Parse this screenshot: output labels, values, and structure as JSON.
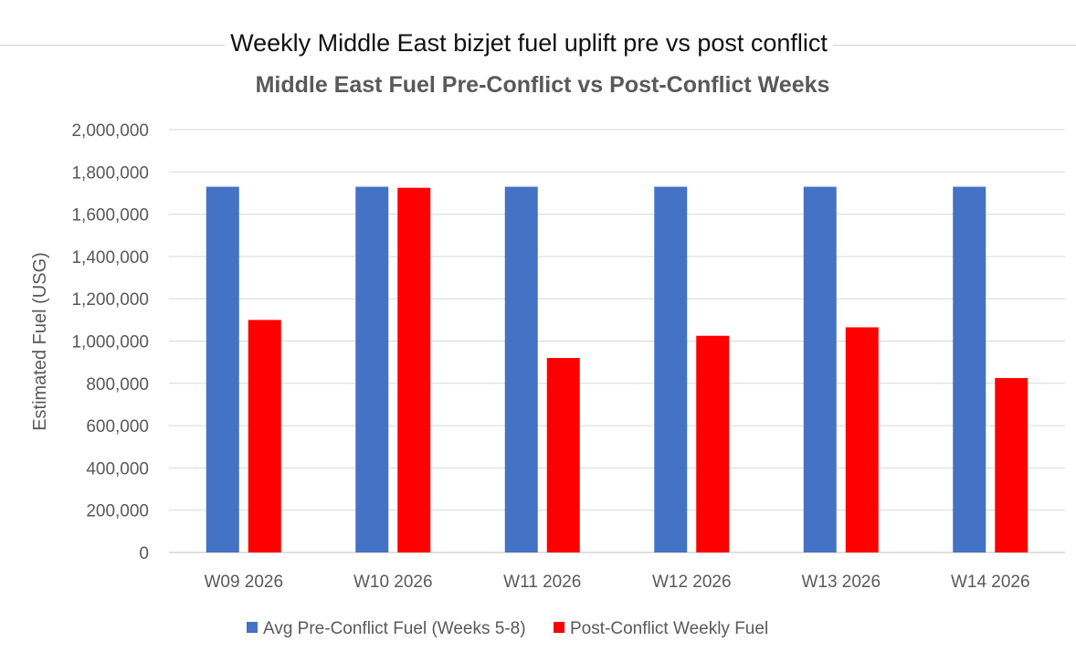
{
  "page": {
    "heading": "Weekly Middle East bizjet fuel uplift pre vs post conflict"
  },
  "chart_data": {
    "type": "bar",
    "title": "Middle East Fuel Pre-Conflict vs Post-Conflict Weeks",
    "xlabel": "",
    "ylabel": "Estimated Fuel (USG)",
    "ylim": [
      0,
      2000000
    ],
    "yticks": [
      0,
      200000,
      400000,
      600000,
      800000,
      1000000,
      1200000,
      1400000,
      1600000,
      1800000,
      2000000
    ],
    "ytick_labels": [
      "0",
      "200,000",
      "400,000",
      "600,000",
      "800,000",
      "1,000,000",
      "1,200,000",
      "1,400,000",
      "1,600,000",
      "1,800,000",
      "2,000,000"
    ],
    "grid": true,
    "legend_position": "bottom",
    "categories": [
      "W09 2026",
      "W10 2026",
      "W11 2026",
      "W12 2026",
      "W13 2026",
      "W14 2026"
    ],
    "series": [
      {
        "name": "Avg Pre-Conflict Fuel (Weeks 5-8)",
        "color": "#4472C4",
        "values": [
          1730000,
          1730000,
          1730000,
          1730000,
          1730000,
          1730000
        ]
      },
      {
        "name": "Post-Conflict Weekly Fuel",
        "color": "#FF0000",
        "values": [
          1100000,
          1725000,
          920000,
          1025000,
          1065000,
          825000
        ]
      }
    ]
  }
}
